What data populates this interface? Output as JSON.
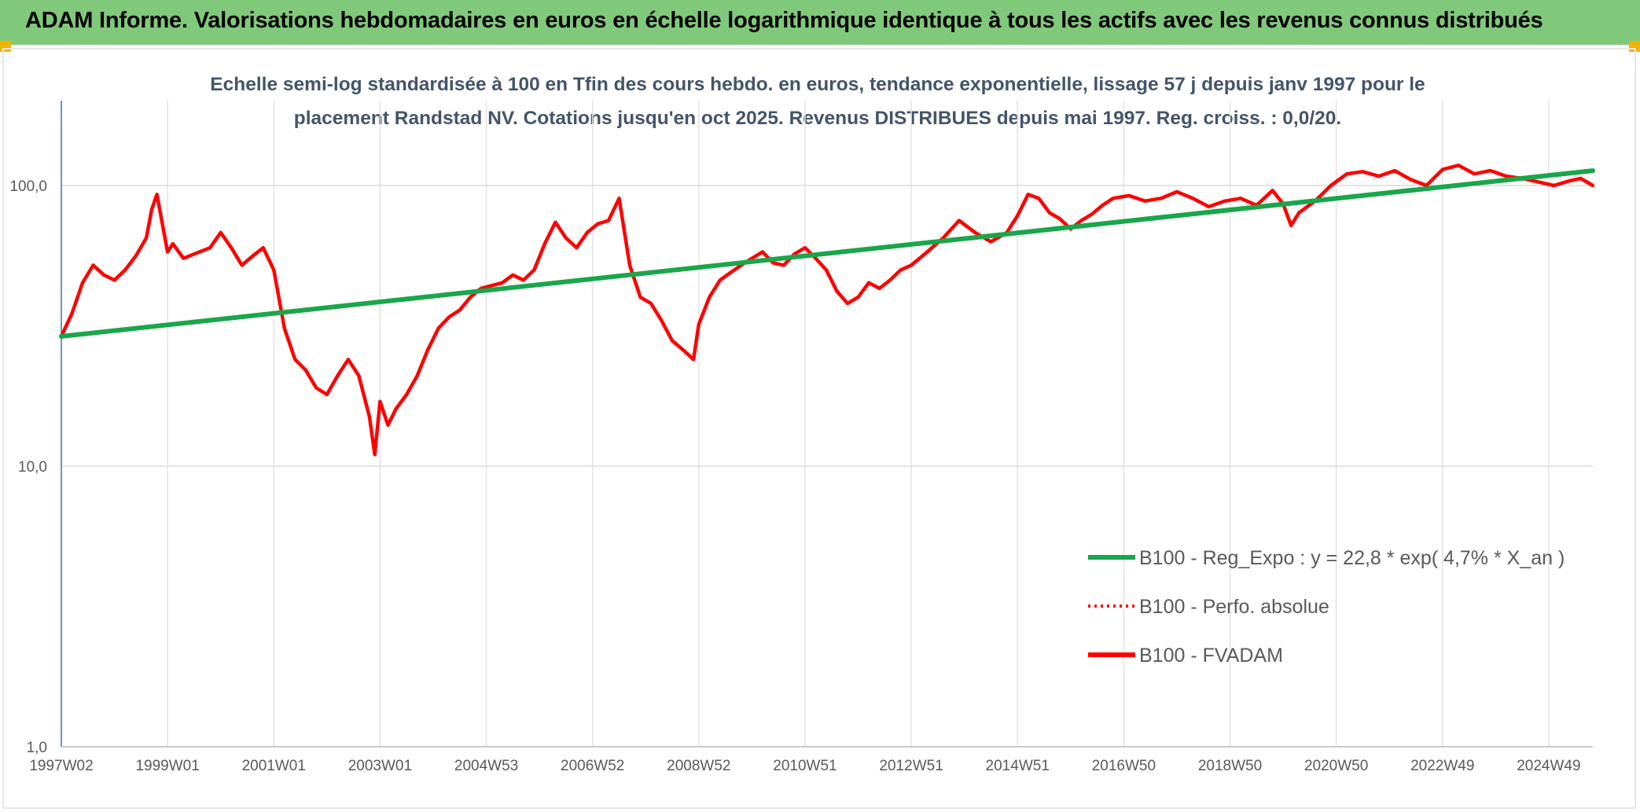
{
  "header": {
    "title": "ADAM Informe. Valorisations hebdomadaires en euros en échelle logarithmique identique à tous les actifs avec les revenus connus distribués"
  },
  "colors": {
    "banner": "#80c97a",
    "corner_marks": "#f2b400",
    "regression_line": "#1aa64a",
    "fvadam_line": "#ff0000",
    "perfo_line": "#ff0000"
  },
  "chart_data": {
    "type": "line",
    "title": "",
    "subtitle_line1": "Echelle semi-log standardisée à 100 en Tfin des cours hebdo. en euros, tendance exponentielle, lissage 57 j depuis janv 1997 pour le",
    "subtitle_line2": "placement Randstad NV. Cotations jusqu'en oct 2025. Revenus DISTRIBUES depuis mai 1997. Reg. croiss. : 0,0/20.",
    "y_scale": "log",
    "ylim": [
      1,
      200
    ],
    "y_ticks": [
      {
        "value": 1,
        "label": "1,0"
      },
      {
        "value": 10,
        "label": "10,0"
      },
      {
        "value": 100,
        "label": "100,0"
      }
    ],
    "xlim": [
      1997.0,
      2025.83
    ],
    "x_ticks": [
      {
        "value": 1997.0,
        "label": "1997W02"
      },
      {
        "value": 1999.0,
        "label": "1999W01"
      },
      {
        "value": 2001.0,
        "label": "2001W01"
      },
      {
        "value": 2003.0,
        "label": "2003W01"
      },
      {
        "value": 2005.0,
        "label": "2004W53"
      },
      {
        "value": 2007.0,
        "label": "2006W52"
      },
      {
        "value": 2009.0,
        "label": "2008W52"
      },
      {
        "value": 2011.0,
        "label": "2010W51"
      },
      {
        "value": 2013.0,
        "label": "2012W51"
      },
      {
        "value": 2015.0,
        "label": "2014W51"
      },
      {
        "value": 2017.0,
        "label": "2016W50"
      },
      {
        "value": 2019.0,
        "label": "2018W50"
      },
      {
        "value": 2021.0,
        "label": "2020W50"
      },
      {
        "value": 2023.0,
        "label": "2022W49"
      },
      {
        "value": 2025.0,
        "label": "2024W49"
      }
    ],
    "grid": true,
    "legend_position": "bottom-right",
    "series": [
      {
        "name": "B100 - Reg_Expo : y = 22,8 * exp( 4,7% *  X_an )",
        "style": "solid-thick",
        "x": [
          1997.0,
          2025.83
        ],
        "y": [
          29,
          113
        ]
      },
      {
        "name": "B100 - Perfo. absolue",
        "style": "dotted",
        "x": [],
        "y": []
      },
      {
        "name": "B100 - FVADAM",
        "style": "solid",
        "x": [
          1997.0,
          1997.2,
          1997.4,
          1997.6,
          1997.8,
          1998.0,
          1998.2,
          1998.4,
          1998.6,
          1998.7,
          1998.8,
          1999.0,
          1999.1,
          1999.3,
          1999.5,
          1999.8,
          2000.0,
          2000.2,
          2000.4,
          2000.6,
          2000.8,
          2001.0,
          2001.2,
          2001.4,
          2001.6,
          2001.8,
          2002.0,
          2002.2,
          2002.4,
          2002.6,
          2002.8,
          2002.9,
          2003.0,
          2003.15,
          2003.3,
          2003.5,
          2003.7,
          2003.9,
          2004.1,
          2004.3,
          2004.5,
          2004.7,
          2004.9,
          2005.1,
          2005.3,
          2005.5,
          2005.7,
          2005.9,
          2006.1,
          2006.3,
          2006.5,
          2006.7,
          2006.9,
          2007.1,
          2007.3,
          2007.5,
          2007.7,
          2007.9,
          2008.1,
          2008.3,
          2008.5,
          2008.7,
          2008.9,
          2009.0,
          2009.2,
          2009.4,
          2009.6,
          2009.8,
          2010.0,
          2010.2,
          2010.4,
          2010.6,
          2010.8,
          2011.0,
          2011.2,
          2011.4,
          2011.6,
          2011.8,
          2012.0,
          2012.2,
          2012.4,
          2012.6,
          2012.8,
          2013.0,
          2013.3,
          2013.6,
          2013.9,
          2014.2,
          2014.5,
          2014.8,
          2015.0,
          2015.2,
          2015.4,
          2015.6,
          2015.8,
          2016.0,
          2016.2,
          2016.4,
          2016.6,
          2016.8,
          2017.1,
          2017.4,
          2017.7,
          2018.0,
          2018.3,
          2018.6,
          2018.9,
          2019.2,
          2019.5,
          2019.8,
          2020.0,
          2020.15,
          2020.3,
          2020.6,
          2020.9,
          2021.2,
          2021.5,
          2021.8,
          2022.1,
          2022.4,
          2022.7,
          2023.0,
          2023.3,
          2023.6,
          2023.9,
          2024.2,
          2024.5,
          2024.8,
          2025.1,
          2025.4,
          2025.6,
          2025.83
        ],
        "y": [
          29,
          35,
          45,
          52,
          48,
          46,
          50,
          56,
          65,
          82,
          93,
          58,
          62,
          55,
          57,
          60,
          68,
          60,
          52,
          56,
          60,
          50,
          31,
          24,
          22,
          19,
          18,
          21,
          24,
          21,
          15,
          11,
          17,
          14,
          16,
          18,
          21,
          26,
          31,
          34,
          36,
          40,
          43,
          44,
          45,
          48,
          46,
          50,
          62,
          74,
          65,
          60,
          68,
          73,
          75,
          90,
          52,
          40,
          38,
          33,
          28,
          26,
          24,
          32,
          40,
          46,
          49,
          52,
          55,
          58,
          53,
          52,
          57,
          60,
          55,
          50,
          42,
          38,
          40,
          45,
          43,
          46,
          50,
          52,
          58,
          65,
          75,
          68,
          63,
          68,
          78,
          93,
          90,
          80,
          76,
          70,
          75,
          79,
          85,
          90,
          92,
          88,
          90,
          95,
          90,
          84,
          88,
          90,
          85,
          96,
          86,
          72,
          80,
          88,
          100,
          110,
          112,
          108,
          113,
          105,
          100,
          114,
          118,
          110,
          113,
          108,
          106,
          103,
          100,
          104,
          106,
          100
        ]
      }
    ]
  }
}
